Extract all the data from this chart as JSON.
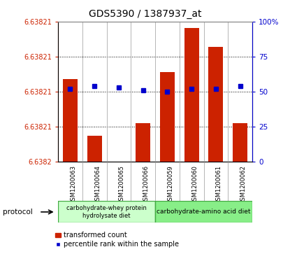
{
  "title": "GDS5390 / 1387937_at",
  "samples": [
    "GSM1200063",
    "GSM1200064",
    "GSM1200065",
    "GSM1200066",
    "GSM1200059",
    "GSM1200060",
    "GSM1200061",
    "GSM1200062"
  ],
  "bar_values": [
    6.638213,
    6.638204,
    6.6382,
    6.638206,
    6.638214,
    6.638221,
    6.638218,
    6.638206
  ],
  "percentile_values": [
    52,
    54,
    53,
    51,
    50,
    52,
    52,
    54
  ],
  "ymin": 6.6382,
  "ymax": 6.638222,
  "ytick_labels": [
    "6.6382",
    "6.63821",
    "6.63821",
    "6.63821",
    "6.63821"
  ],
  "right_yticks": [
    0,
    25,
    50,
    75,
    100
  ],
  "right_ytick_labels": [
    "0",
    "25",
    "50",
    "75",
    "100%"
  ],
  "bar_color": "#cc2200",
  "marker_color": "#0000cc",
  "protocol1_label": "carbohydrate-whey protein\nhydrolysate diet",
  "protocol2_label": "carbohydrate-amino acid diet",
  "protocol1_color": "#ccffcc",
  "protocol2_color": "#88ee88",
  "proto_edge_color": "#44aa44",
  "legend_bar_label": "transformed count",
  "legend_marker_label": "percentile rank within the sample",
  "sample_bg_color": "#d0d0d0",
  "bg_color": "#ffffff"
}
